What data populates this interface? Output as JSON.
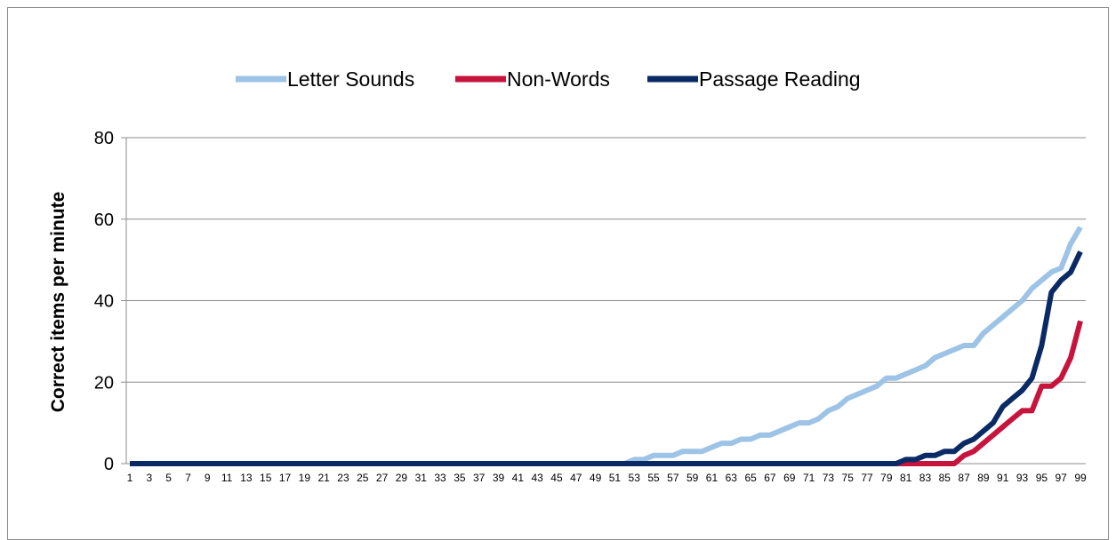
{
  "chart_data": {
    "type": "line",
    "title": "",
    "xlabel": "",
    "ylabel": "Correct items per minute",
    "ylim": [
      0,
      80
    ],
    "yticks": [
      0,
      20,
      40,
      60,
      80
    ],
    "x_start": 1,
    "x_end": 99,
    "x_tick_labels": [
      "1",
      "3",
      "5",
      "7",
      "9",
      "11",
      "13",
      "15",
      "17",
      "19",
      "21",
      "23",
      "25",
      "27",
      "29",
      "31",
      "33",
      "35",
      "37",
      "39",
      "41",
      "43",
      "45",
      "47",
      "49",
      "51",
      "53",
      "55",
      "57",
      "59",
      "61",
      "63",
      "65",
      "67",
      "69",
      "71",
      "73",
      "75",
      "77",
      "79",
      "81",
      "83",
      "85",
      "87",
      "89",
      "91",
      "93",
      "95",
      "97",
      "99"
    ],
    "grid": "horizontal",
    "legend_position": "top",
    "series": [
      {
        "name": "Letter Sounds",
        "color": "#9dc3e6",
        "points": [
          [
            1,
            0
          ],
          [
            52,
            0
          ],
          [
            53,
            1
          ],
          [
            54,
            1
          ],
          [
            55,
            2
          ],
          [
            57,
            2
          ],
          [
            58,
            3
          ],
          [
            60,
            3
          ],
          [
            61,
            4
          ],
          [
            62,
            5
          ],
          [
            63,
            5
          ],
          [
            64,
            6
          ],
          [
            65,
            6
          ],
          [
            66,
            7
          ],
          [
            67,
            7
          ],
          [
            68,
            8
          ],
          [
            69,
            9
          ],
          [
            70,
            10
          ],
          [
            71,
            10
          ],
          [
            72,
            11
          ],
          [
            73,
            13
          ],
          [
            74,
            14
          ],
          [
            75,
            16
          ],
          [
            76,
            17
          ],
          [
            77,
            18
          ],
          [
            78,
            19
          ],
          [
            79,
            21
          ],
          [
            80,
            21
          ],
          [
            81,
            22
          ],
          [
            82,
            23
          ],
          [
            83,
            24
          ],
          [
            84,
            26
          ],
          [
            85,
            27
          ],
          [
            86,
            28
          ],
          [
            87,
            29
          ],
          [
            88,
            29
          ],
          [
            89,
            32
          ],
          [
            90,
            34
          ],
          [
            91,
            36
          ],
          [
            92,
            38
          ],
          [
            93,
            40
          ],
          [
            94,
            43
          ],
          [
            95,
            45
          ],
          [
            96,
            47
          ],
          [
            97,
            48
          ],
          [
            98,
            54
          ],
          [
            99,
            58
          ]
        ]
      },
      {
        "name": "Non-Words",
        "color": "#c7143d",
        "points": [
          [
            1,
            0
          ],
          [
            81,
            0
          ],
          [
            82,
            0
          ],
          [
            83,
            0
          ],
          [
            84,
            0
          ],
          [
            85,
            0
          ],
          [
            86,
            0
          ],
          [
            87,
            2
          ],
          [
            88,
            3
          ],
          [
            89,
            5
          ],
          [
            90,
            7
          ],
          [
            91,
            9
          ],
          [
            92,
            11
          ],
          [
            93,
            13
          ],
          [
            94,
            13
          ],
          [
            95,
            19
          ],
          [
            96,
            19
          ],
          [
            97,
            21
          ],
          [
            98,
            26
          ],
          [
            99,
            35
          ]
        ]
      },
      {
        "name": "Passage Reading",
        "color": "#0a2a66",
        "points": [
          [
            1,
            0
          ],
          [
            80,
            0
          ],
          [
            81,
            1
          ],
          [
            82,
            1
          ],
          [
            83,
            2
          ],
          [
            84,
            2
          ],
          [
            85,
            3
          ],
          [
            86,
            3
          ],
          [
            87,
            5
          ],
          [
            88,
            6
          ],
          [
            89,
            8
          ],
          [
            90,
            10
          ],
          [
            91,
            14
          ],
          [
            92,
            16
          ],
          [
            93,
            18
          ],
          [
            94,
            21
          ],
          [
            95,
            29
          ],
          [
            96,
            42
          ],
          [
            97,
            45
          ],
          [
            98,
            47
          ],
          [
            99,
            52
          ]
        ]
      }
    ]
  }
}
